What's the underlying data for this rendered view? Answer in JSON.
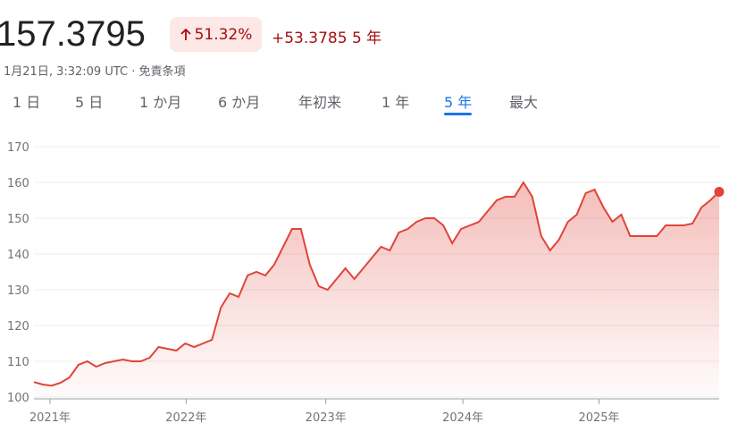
{
  "header": {
    "price": "157.3795",
    "change_pct": "51.32%",
    "change_abs": "+53.3785",
    "period": "5 年",
    "timestamp": "1月21日, 3:32:09 UTC",
    "disclaimer": "免責条項"
  },
  "tabs": {
    "items": [
      "1 日",
      "5 日",
      "1 か月",
      "6 か月",
      "年初来",
      "1 年",
      "5 年",
      "最大"
    ],
    "selected": 6
  },
  "chart_data": {
    "type": "line",
    "color": "#e0443a",
    "values": [
      104.2,
      103.5,
      103.2,
      104,
      105.5,
      109,
      110,
      108.5,
      109.5,
      110,
      110.5,
      110,
      110,
      111,
      114,
      113.5,
      113,
      115,
      114,
      115,
      116,
      125,
      129,
      128,
      134,
      135,
      134,
      137,
      142,
      147,
      147,
      137,
      131,
      130,
      133,
      136,
      133,
      136,
      139,
      142,
      141,
      146,
      147,
      149,
      150,
      150,
      148,
      143,
      147,
      148,
      149,
      152,
      155,
      156,
      156,
      160,
      156,
      145,
      141,
      144,
      149,
      151,
      157,
      158,
      153,
      149,
      151,
      145,
      145,
      145,
      145,
      148,
      148,
      148,
      148.5,
      153,
      155,
      157.3795
    ],
    "xlim": [
      0,
      77
    ],
    "xticks": [
      {
        "value": 1.8,
        "label": "2021年"
      },
      {
        "value": 17.1,
        "label": "2022年"
      },
      {
        "value": 32.8,
        "label": "2023年"
      },
      {
        "value": 48.2,
        "label": "2024年"
      },
      {
        "value": 63.5,
        "label": "2025年"
      }
    ],
    "ylim": [
      100,
      170
    ],
    "yticks": [
      100,
      110,
      120,
      130,
      140,
      150,
      160,
      170
    ],
    "grid": true
  }
}
